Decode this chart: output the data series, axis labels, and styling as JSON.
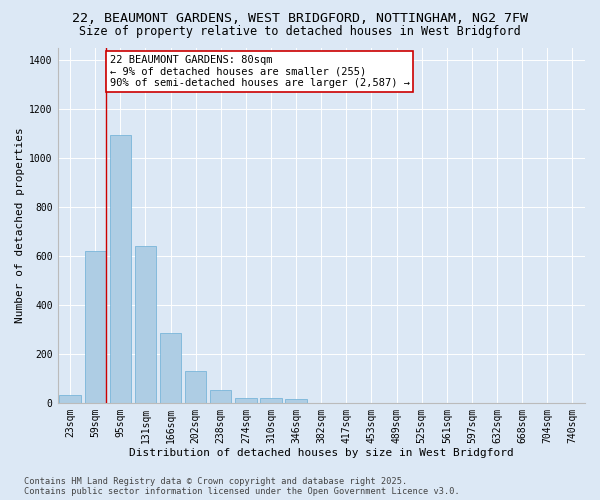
{
  "title_line1": "22, BEAUMONT GARDENS, WEST BRIDGFORD, NOTTINGHAM, NG2 7FW",
  "title_line2": "Size of property relative to detached houses in West Bridgford",
  "xlabel": "Distribution of detached houses by size in West Bridgford",
  "ylabel": "Number of detached properties",
  "categories": [
    "23sqm",
    "59sqm",
    "95sqm",
    "131sqm",
    "166sqm",
    "202sqm",
    "238sqm",
    "274sqm",
    "310sqm",
    "346sqm",
    "382sqm",
    "417sqm",
    "453sqm",
    "489sqm",
    "525sqm",
    "561sqm",
    "597sqm",
    "632sqm",
    "668sqm",
    "704sqm",
    "740sqm"
  ],
  "values": [
    35,
    620,
    1095,
    640,
    285,
    130,
    55,
    22,
    22,
    18,
    0,
    0,
    0,
    0,
    0,
    0,
    0,
    0,
    0,
    0,
    0
  ],
  "bar_color": "#aecde4",
  "bar_edge_color": "#6aaed6",
  "vline_x": 1.42,
  "vline_color": "#cc0000",
  "annotation_text": "22 BEAUMONT GARDENS: 80sqm\n← 9% of detached houses are smaller (255)\n90% of semi-detached houses are larger (2,587) →",
  "annotation_box_color": "#ffffff",
  "annotation_box_edge": "#cc0000",
  "ylim": [
    0,
    1450
  ],
  "yticks": [
    0,
    200,
    400,
    600,
    800,
    1000,
    1200,
    1400
  ],
  "bg_color": "#dce8f5",
  "plot_bg_color": "#dce8f5",
  "footer_line1": "Contains HM Land Registry data © Crown copyright and database right 2025.",
  "footer_line2": "Contains public sector information licensed under the Open Government Licence v3.0.",
  "title_fontsize": 9.5,
  "subtitle_fontsize": 8.5,
  "axis_label_fontsize": 8,
  "tick_fontsize": 7,
  "annotation_fontsize": 7.5,
  "footer_fontsize": 6.2
}
